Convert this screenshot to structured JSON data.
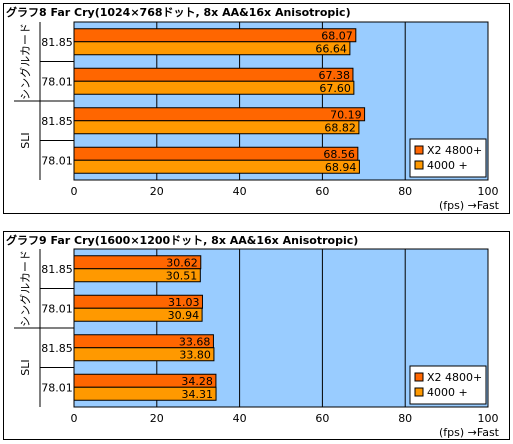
{
  "chart_data": [
    {
      "type": "bar",
      "orientation": "horizontal",
      "title": "グラフ8  Far Cry(1024×768ドット, 8x AA&16x Anisotropic)",
      "group_labels": [
        "シングルカード",
        "SLI"
      ],
      "categories": [
        "81.85",
        "78.01",
        "81.85",
        "78.01"
      ],
      "series": [
        {
          "name": "X2 4800+",
          "color": "#ff6600",
          "values": [
            68.07,
            67.38,
            70.19,
            68.56
          ]
        },
        {
          "name": "4000 +",
          "color": "#ff9900",
          "values": [
            66.64,
            67.6,
            68.82,
            68.94
          ]
        }
      ],
      "xlim": [
        0,
        100
      ],
      "xticks": [
        "0",
        "20",
        "40",
        "60",
        "80",
        "100"
      ],
      "xlabel": "(fps) →Fast",
      "grid": true,
      "legend": "bottom-right",
      "plot_background": "#99ccff"
    },
    {
      "type": "bar",
      "orientation": "horizontal",
      "title": "グラフ9  Far Cry(1600×1200ドット, 8x AA&16x Anisotropic)",
      "group_labels": [
        "シングルカード",
        "SLI"
      ],
      "categories": [
        "81.85",
        "78.01",
        "81.85",
        "78.01"
      ],
      "series": [
        {
          "name": "X2 4800+",
          "color": "#ff6600",
          "values": [
            30.62,
            31.03,
            33.68,
            34.28
          ]
        },
        {
          "name": "4000 +",
          "color": "#ff9900",
          "values": [
            30.51,
            30.94,
            33.8,
            34.31
          ]
        }
      ],
      "xlim": [
        0,
        100
      ],
      "xticks": [
        "0",
        "20",
        "40",
        "60",
        "80",
        "100"
      ],
      "xlabel": "(fps) →Fast",
      "grid": true,
      "legend": "bottom-right",
      "plot_background": "#99ccff"
    }
  ]
}
